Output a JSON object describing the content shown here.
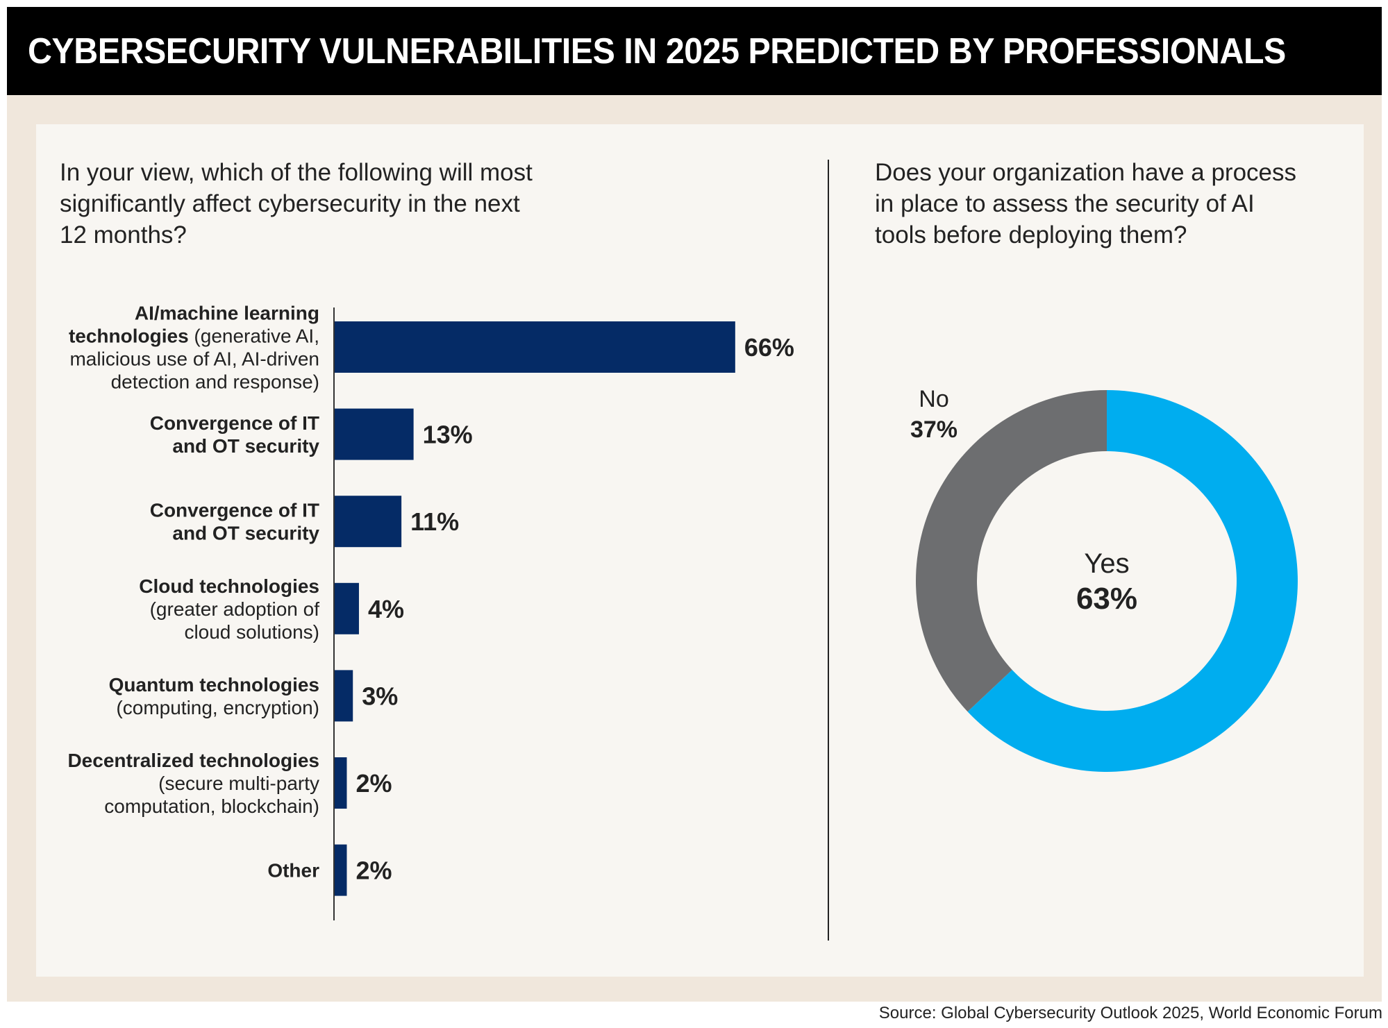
{
  "title": "CYBERSECURITY VULNERABILITIES IN 2025 PREDICTED BY PROFESSIONALS",
  "source": "Source: Global Cybersecurity Outlook 2025, World Economic Forum",
  "colors": {
    "bar": "#052b66",
    "yes": "#00adef",
    "no": "#6d6e70",
    "text": "#222222"
  },
  "chart_data": [
    {
      "type": "bar",
      "orientation": "horizontal",
      "title": "In your view, which of the following will most\nsignificantly affect cybersecurity in the next\n12 months?",
      "unit": "%",
      "categories": [
        {
          "bold": "AI/machine learning technologies",
          "detail": "(generative AI, malicious use of AI, AI-driven detection and response)",
          "lines": [
            [
              "AI/machine learning",
              ""
            ],
            [
              "technologies",
              " (generative AI,"
            ],
            [
              "",
              "malicious use of AI, AI-driven"
            ],
            [
              "",
              "detection and response)"
            ]
          ]
        },
        {
          "bold": "Convergence of IT and OT security",
          "detail": "",
          "lines": [
            [
              "Convergence of IT",
              ""
            ],
            [
              "and OT security",
              ""
            ]
          ]
        },
        {
          "bold": "Convergence of IT and OT security",
          "detail": "",
          "lines": [
            [
              "Convergence of IT",
              ""
            ],
            [
              "and OT security",
              ""
            ]
          ]
        },
        {
          "bold": "Cloud technologies",
          "detail": "(greater adoption of cloud solutions)",
          "lines": [
            [
              "Cloud technologies",
              ""
            ],
            [
              "",
              "(greater adoption of"
            ],
            [
              "",
              "cloud solutions)"
            ]
          ]
        },
        {
          "bold": "Quantum technologies",
          "detail": "(computing, encryption)",
          "lines": [
            [
              "Quantum technologies",
              ""
            ],
            [
              "",
              "(computing, encryption)"
            ]
          ]
        },
        {
          "bold": "Decentralized technologies",
          "detail": "(secure multi-party computation, blockchain)",
          "lines": [
            [
              "Decentralized technologies",
              ""
            ],
            [
              "",
              "(secure multi-party"
            ],
            [
              "",
              "computation, blockchain)"
            ]
          ]
        },
        {
          "bold": "Other",
          "detail": "",
          "lines": [
            [
              "Other",
              ""
            ]
          ]
        }
      ],
      "values": [
        66,
        13,
        11,
        4,
        3,
        2,
        2
      ],
      "value_labels": [
        "66%",
        "13%",
        "11%",
        "4%",
        "3%",
        "2%",
        "2%"
      ]
    },
    {
      "type": "pie",
      "variant": "donut",
      "title": "Does your organization have a process\nin place to assess the security of AI\ntools before deploying them?",
      "slices": [
        {
          "label": "Yes",
          "value": 63,
          "value_label": "63%"
        },
        {
          "label": "No",
          "value": 37,
          "value_label": "37%"
        }
      ]
    }
  ]
}
